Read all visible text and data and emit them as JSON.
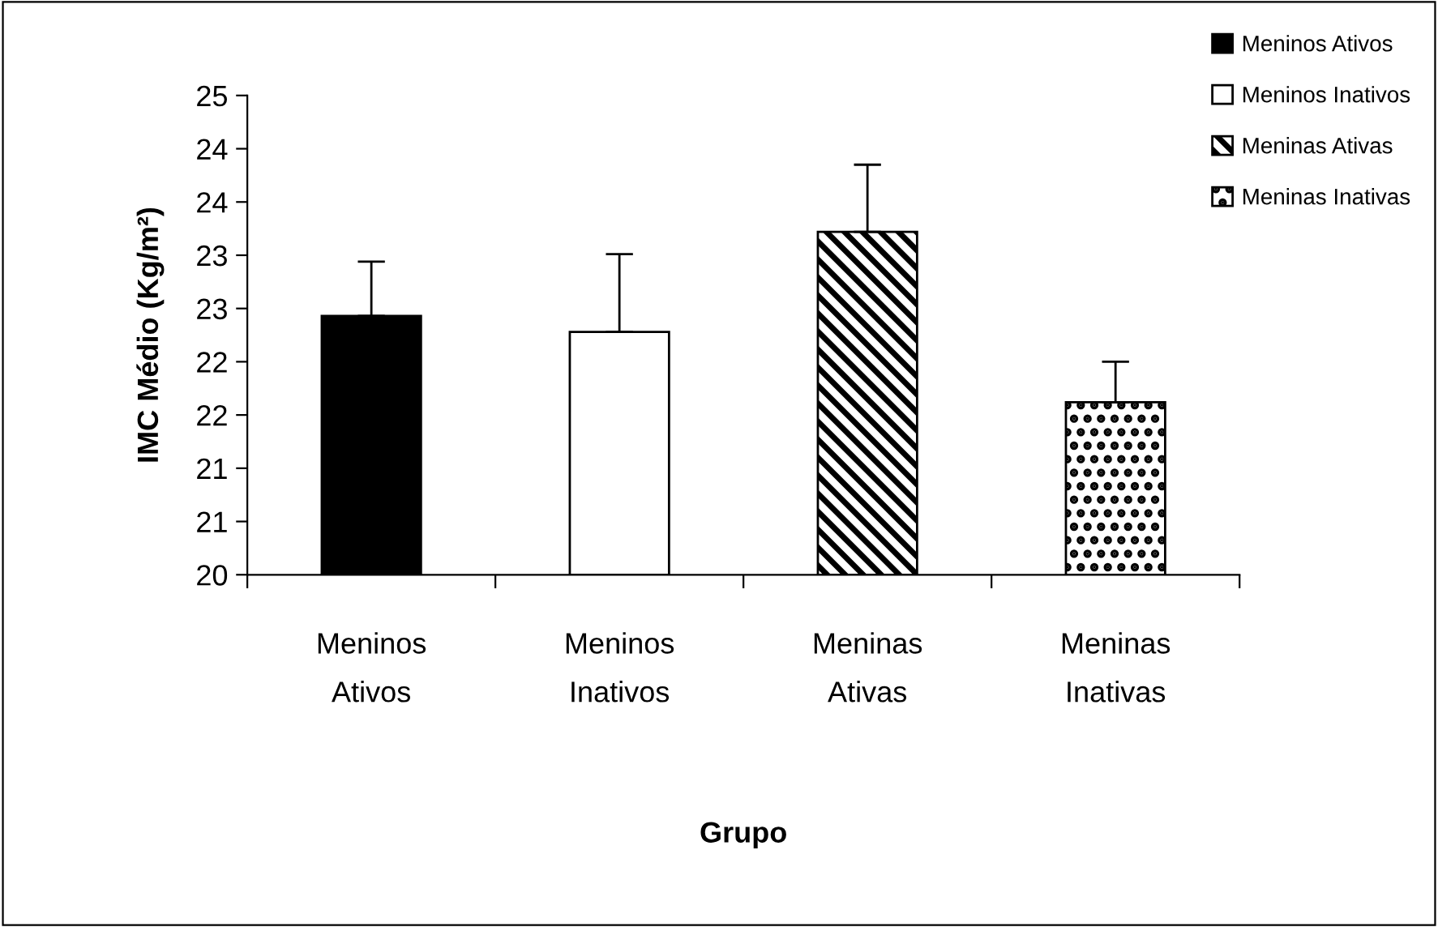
{
  "chart_data": {
    "type": "bar",
    "xlabel": "Grupo",
    "ylabel": "IMC Médio (Kg/m²)",
    "categories": [
      "Meninos\nAtivos",
      "Meninos\nInativos",
      "Meninas\nAtivas",
      "Meninas\nInativas"
    ],
    "series": [
      {
        "name": "Meninos Ativos",
        "color": "#000000",
        "values": [
          22.43,
          null,
          null,
          null
        ],
        "errors": [
          [
            22.43,
            22.94
          ],
          null,
          null,
          null
        ]
      },
      {
        "name": "Meninos Inativos",
        "color": "#ffffff",
        "values": [
          null,
          22.28,
          null,
          null
        ],
        "errors": [
          null,
          [
            22.28,
            23.01
          ],
          null,
          null
        ]
      },
      {
        "name": "Meninas Ativas",
        "color": "#000000",
        "values": [
          null,
          null,
          23.22,
          null
        ],
        "errors": [
          null,
          null,
          [
            23.22,
            23.85
          ],
          null
        ]
      },
      {
        "name": "Meninas Inativas",
        "color": "#000000",
        "values": [
          null,
          null,
          null,
          21.62
        ],
        "errors": [
          null,
          null,
          null,
          [
            21.62,
            22.0
          ]
        ]
      }
    ],
    "ylim": [
      20,
      24.5
    ],
    "yticks": [
      20,
      {
        "value": 20.5,
        "label": "21"
      },
      {
        "value": 21,
        "label": "21"
      },
      {
        "value": 21.5,
        "label": "22"
      },
      {
        "value": 22,
        "label": "22"
      },
      {
        "value": 22.5,
        "label": "23"
      },
      {
        "value": 23,
        "label": "23"
      },
      {
        "value": 23.5,
        "label": "24"
      },
      {
        "value": 24,
        "label": "24"
      },
      {
        "value": 24.5,
        "label": "25"
      }
    ],
    "legend": "top right"
  }
}
